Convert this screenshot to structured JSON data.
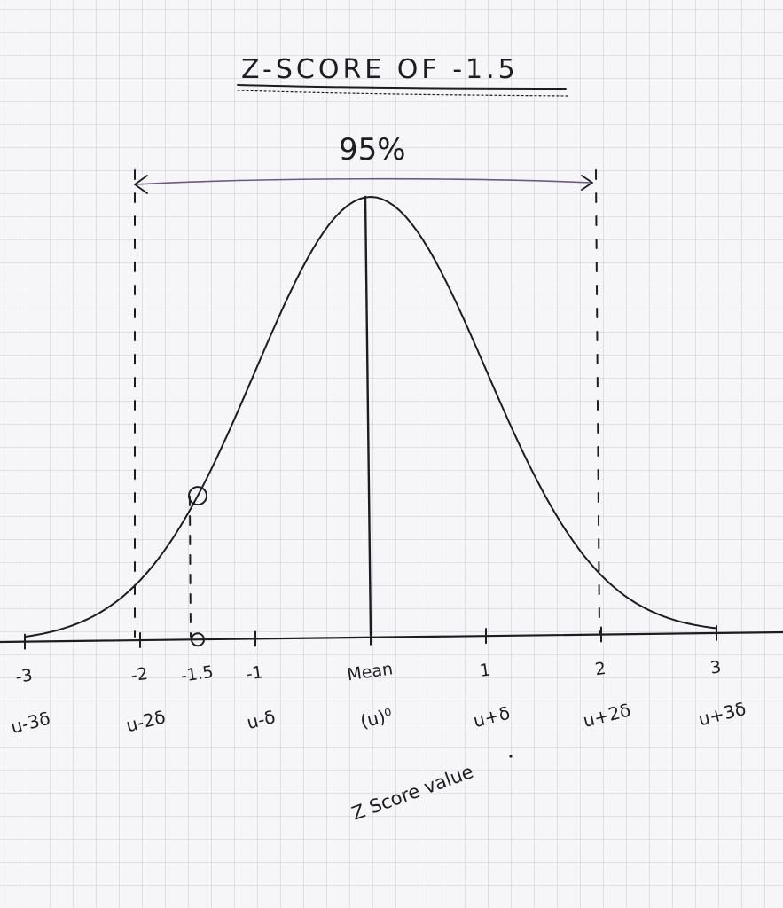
{
  "chart_data": {
    "type": "line",
    "title": "Z-SCORE OF -1.5",
    "annotation_percent": "95%",
    "x_range": [
      -3,
      3
    ],
    "z_ticks": [
      {
        "z": -3,
        "label": "-3",
        "formula": "u-3δ"
      },
      {
        "z": -2,
        "label": "-2",
        "formula": "u-2δ"
      },
      {
        "z": -1.5,
        "label": "-1.5",
        "formula": ""
      },
      {
        "z": -1,
        "label": "-1",
        "formula": "u-δ"
      },
      {
        "z": 0,
        "label": "Mean",
        "formula": "(u)⁰"
      },
      {
        "z": 1,
        "label": "1",
        "formula": "u+δ"
      },
      {
        "z": 2,
        "label": "2",
        "formula": "u+2δ"
      },
      {
        "z": 3,
        "label": "3",
        "formula": "u+3δ"
      }
    ],
    "highlight_z": -1.5,
    "interval_z": [
      -2,
      2
    ],
    "xlabel": "Z Score value"
  }
}
